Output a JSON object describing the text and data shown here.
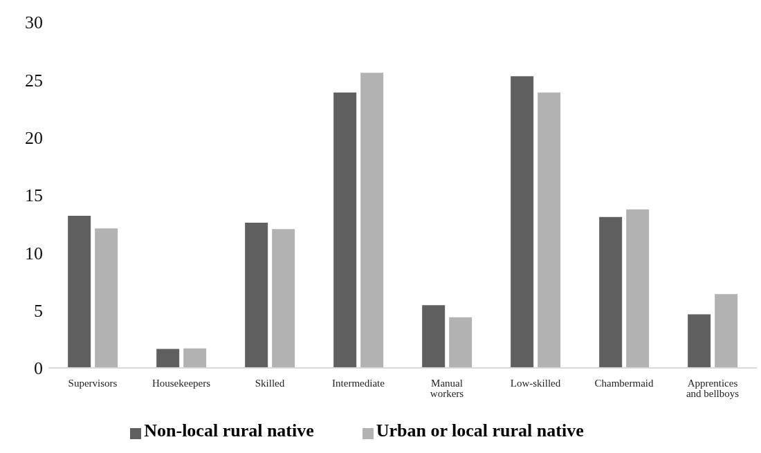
{
  "chart_data": {
    "type": "bar",
    "categories": [
      "Supervisors",
      "Housekeepers",
      "Skilled",
      "Intermediate",
      "Manual workers",
      "Low-skilled",
      "Chambermaid",
      "Apprentices and bellboys"
    ],
    "series": [
      {
        "name": "Non-local rural native",
        "color": "#5f5f5f",
        "values": [
          13.2,
          1.65,
          12.6,
          23.9,
          5.45,
          25.3,
          13.1,
          4.65
        ]
      },
      {
        "name": "Urban or local rural native",
        "color": "#b2b2b2",
        "values": [
          12.1,
          1.7,
          12.05,
          25.6,
          4.4,
          23.9,
          13.75,
          6.4
        ]
      }
    ],
    "ylim": [
      0,
      30
    ],
    "yticks": [
      0,
      5,
      10,
      15,
      20,
      25,
      30
    ],
    "grid": false,
    "legend": "bottom"
  }
}
